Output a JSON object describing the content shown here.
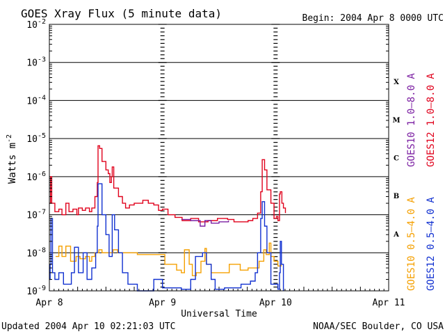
{
  "chart_data": {
    "type": "line",
    "title": "GOES Xray Flux (5 minute data)",
    "begin_text": "Begin:  2004 Apr 8 0000 UTC",
    "ylabel_base": "Watts m",
    "ylabel_exp": "-2",
    "xlabel": "Universal Time",
    "footer_left": "Updated 2004 Apr 10 02:21:03 UTC",
    "footer_right": "NOAA/SEC Boulder, CO USA",
    "yscale": "log",
    "ylim": [
      1e-09,
      0.01
    ],
    "xlim": [
      "2004-04-08 00:00",
      "2004-04-11 00:00"
    ],
    "grid": "horizontal at each decade",
    "x_ticks": [
      {
        "x": "2004-04-08 00:00",
        "label": "Apr 8"
      },
      {
        "x": "2004-04-09 00:00",
        "label": "Apr 9"
      },
      {
        "x": "2004-04-10 00:00",
        "label": "Apr 10"
      },
      {
        "x": "2004-04-11 00:00",
        "label": "Apr 11"
      }
    ],
    "y_ticks": [
      {
        "exp": -2,
        "label_base": "10",
        "label_exp": "-2"
      },
      {
        "exp": -3,
        "label_base": "10",
        "label_exp": "-3"
      },
      {
        "exp": -4,
        "label_base": "10",
        "label_exp": "-4"
      },
      {
        "exp": -5,
        "label_base": "10",
        "label_exp": "-5"
      },
      {
        "exp": -6,
        "label_base": "10",
        "label_exp": "-6"
      },
      {
        "exp": -7,
        "label_base": "10",
        "label_exp": "-7"
      },
      {
        "exp": -8,
        "label_base": "10",
        "label_exp": "-8"
      },
      {
        "exp": -9,
        "label_base": "10",
        "label_exp": "-9"
      }
    ],
    "flare_classes": [
      {
        "label": "X",
        "exp": -4
      },
      {
        "label": "M",
        "exp": -5
      },
      {
        "label": "C",
        "exp": -6
      },
      {
        "label": "B",
        "exp": -7
      },
      {
        "label": "A",
        "exp": -8
      }
    ],
    "legend_right": [
      {
        "name": "GOES10 1.0–8.0 A",
        "color": "#7b1fa2",
        "group": "long"
      },
      {
        "name": "GOES12 1.0–8.0 A",
        "color": "#e0001b",
        "group": "long"
      },
      {
        "name": "GOES10 0.5–4.0 A",
        "color": "#f5a000",
        "group": "short"
      },
      {
        "name": "GOES12 0.5–4.0 A",
        "color": "#1030d0",
        "group": "short"
      }
    ],
    "series": [
      {
        "name": "GOES12 1.0–8.0 A",
        "color": "#e0001b",
        "points": [
          [
            "2004-04-08 00:00",
            2e-07
          ],
          [
            "2004-04-08 00:15",
            1e-06
          ],
          [
            "2004-04-08 00:30",
            2e-07
          ],
          [
            "2004-04-08 01:10",
            1.2e-07
          ],
          [
            "2004-04-08 02:00",
            1.4e-07
          ],
          [
            "2004-04-08 02:40",
            1e-07
          ],
          [
            "2004-04-08 03:30",
            2e-07
          ],
          [
            "2004-04-08 04:10",
            1.2e-07
          ],
          [
            "2004-04-08 05:00",
            1.4e-07
          ],
          [
            "2004-04-08 05:50",
            1e-07
          ],
          [
            "2004-04-08 06:10",
            1.5e-07
          ],
          [
            "2004-04-08 07:00",
            1.3e-07
          ],
          [
            "2004-04-08 07:40",
            1.5e-07
          ],
          [
            "2004-04-08 08:30",
            1.2e-07
          ],
          [
            "2004-04-08 09:00",
            1.5e-07
          ],
          [
            "2004-04-08 09:40",
            3e-07
          ],
          [
            "2004-04-08 10:10",
            7e-07
          ],
          [
            "2004-04-08 10:20",
            6.5e-06
          ],
          [
            "2004-04-08 10:40",
            5.5e-06
          ],
          [
            "2004-04-08 11:10",
            2.5e-06
          ],
          [
            "2004-04-08 12:00",
            1.5e-06
          ],
          [
            "2004-04-08 12:30",
            1.2e-06
          ],
          [
            "2004-04-08 12:50",
            7e-07
          ],
          [
            "2004-04-08 13:10",
            1e-06
          ],
          [
            "2004-04-08 13:20",
            1.8e-06
          ],
          [
            "2004-04-08 13:40",
            5e-07
          ],
          [
            "2004-04-08 14:40",
            3e-07
          ],
          [
            "2004-04-08 15:30",
            2e-07
          ],
          [
            "2004-04-08 16:10",
            1.5e-07
          ],
          [
            "2004-04-08 17:00",
            1.8e-07
          ],
          [
            "2004-04-08 18:00",
            2e-07
          ],
          [
            "2004-04-08 19:50",
            2.4e-07
          ],
          [
            "2004-04-08 21:00",
            2e-07
          ],
          [
            "2004-04-08 22:10",
            1.8e-07
          ],
          [
            "2004-04-08 23:10",
            1.3e-07
          ],
          [
            "2004-04-09 00:00",
            1.4e-07
          ],
          [
            "2004-04-09 01:10",
            1e-07
          ],
          [
            "2004-04-09 02:40",
            8.5e-08
          ],
          [
            "2004-04-09 04:10",
            7e-08
          ],
          [
            "2004-04-09 06:00",
            8e-08
          ],
          [
            "2004-04-09 07:40",
            6.5e-08
          ],
          [
            "2004-04-09 09:40",
            7e-08
          ],
          [
            "2004-04-09 11:40",
            8e-08
          ],
          [
            "2004-04-09 13:50",
            7.5e-08
          ],
          [
            "2004-04-09 15:10",
            6.5e-08
          ],
          [
            "2004-04-09 16:40",
            6.5e-08
          ],
          [
            "2004-04-09 18:10",
            7e-08
          ],
          [
            "2004-04-09 19:10",
            8e-08
          ],
          [
            "2004-04-09 20:10",
            1.1e-07
          ],
          [
            "2004-04-09 20:50",
            4e-07
          ],
          [
            "2004-04-09 21:10",
            2.8e-06
          ],
          [
            "2004-04-09 21:40",
            1.5e-06
          ],
          [
            "2004-04-09 22:10",
            4.5e-07
          ],
          [
            "2004-04-09 23:00",
            2e-07
          ],
          [
            "2004-04-09 23:40",
            8e-08
          ],
          [
            "2004-04-10 00:10",
            9e-08
          ],
          [
            "2004-04-10 00:30",
            7e-08
          ],
          [
            "2004-04-10 00:50",
            3.5e-07
          ],
          [
            "2004-04-10 01:00",
            4e-07
          ],
          [
            "2004-04-10 01:20",
            2e-07
          ],
          [
            "2004-04-10 01:40",
            1.5e-07
          ],
          [
            "2004-04-10 02:05",
            1.1e-07
          ]
        ]
      },
      {
        "name": "GOES10 1.0–8.0 A",
        "color": "#7b1fa2",
        "points": [
          [
            "2004-04-09 04:00",
            7.5e-08
          ],
          [
            "2004-04-09 06:00",
            7e-08
          ],
          [
            "2004-04-09 08:00",
            5e-08
          ],
          [
            "2004-04-09 09:00",
            7e-08
          ],
          [
            "2004-04-09 10:20",
            6e-08
          ],
          [
            "2004-04-09 12:00",
            6.5e-08
          ],
          [
            "2004-04-09 14:00",
            7e-08
          ]
        ]
      },
      {
        "name": "GOES10 0.5–4.0 A",
        "color": "#f5a000",
        "points": [
          [
            "2004-04-08 01:20",
            8e-09
          ],
          [
            "2004-04-08 02:00",
            1.5e-08
          ],
          [
            "2004-04-08 02:40",
            8e-09
          ],
          [
            "2004-04-08 03:30",
            1.5e-08
          ],
          [
            "2004-04-08 04:30",
            6e-09
          ],
          [
            "2004-04-08 05:40",
            8e-09
          ],
          [
            "2004-04-08 06:30",
            7e-09
          ],
          [
            "2004-04-08 07:40",
            8e-09
          ],
          [
            "2004-04-08 08:30",
            6e-09
          ],
          [
            "2004-04-08 09:00",
            8e-09
          ],
          [
            "2004-04-08 09:40",
            1e-08
          ],
          [
            "2004-04-08 10:30",
            1.2e-08
          ],
          [
            "2004-04-08 11:10",
            1e-08
          ],
          [
            "2004-04-08 12:10",
            1e-08
          ],
          [
            "2004-04-08 13:30",
            1.2e-08
          ],
          [
            "2004-04-08 14:30",
            1e-08
          ],
          [
            "2004-04-08 16:40",
            1e-08
          ],
          [
            "2004-04-08 18:40",
            9e-09
          ],
          [
            "2004-04-08 21:00",
            9e-09
          ],
          [
            "2004-04-08 23:30",
            9e-09
          ],
          [
            "2004-04-09 00:30",
            5e-09
          ],
          [
            "2004-04-09 02:10",
            5e-09
          ],
          [
            "2004-04-09 03:00",
            3.5e-09
          ],
          [
            "2004-04-09 04:00",
            3e-09
          ],
          [
            "2004-04-09 04:40",
            1.2e-08
          ],
          [
            "2004-04-09 05:40",
            5e-09
          ],
          [
            "2004-04-09 06:20",
            2.5e-09
          ],
          [
            "2004-04-09 07:10",
            3e-09
          ],
          [
            "2004-04-09 08:10",
            6e-09
          ],
          [
            "2004-04-09 09:00",
            1.3e-08
          ],
          [
            "2004-04-09 09:20",
            5e-09
          ],
          [
            "2004-04-09 10:20",
            3e-09
          ],
          [
            "2004-04-09 12:00",
            3e-09
          ],
          [
            "2004-04-09 13:10",
            3e-09
          ],
          [
            "2004-04-09 14:10",
            5e-09
          ],
          [
            "2004-04-09 15:40",
            5e-09
          ],
          [
            "2004-04-09 16:30",
            3.5e-09
          ],
          [
            "2004-04-09 18:10",
            4e-09
          ],
          [
            "2004-04-09 19:30",
            4e-09
          ],
          [
            "2004-04-09 20:30",
            6e-09
          ],
          [
            "2004-04-09 21:30",
            1.2e-08
          ],
          [
            "2004-04-09 22:00",
            9e-09
          ],
          [
            "2004-04-09 22:40",
            1.8e-08
          ],
          [
            "2004-04-09 23:00",
            8e-09
          ],
          [
            "2004-04-09 23:40",
            6e-09
          ],
          [
            "2004-04-10 00:30",
            4.5e-09
          ],
          [
            "2004-04-10 01:10",
            5e-09
          ]
        ]
      },
      {
        "name": "GOES12 0.5–4.0 A",
        "color": "#1030d0",
        "points": [
          [
            "2004-04-08 00:00",
            2e-09
          ],
          [
            "2004-04-08 00:10",
            5e-09
          ],
          [
            "2004-04-08 00:20",
            8e-08
          ],
          [
            "2004-04-08 00:40",
            3e-09
          ],
          [
            "2004-04-08 01:10",
            2e-09
          ],
          [
            "2004-04-08 02:00",
            3e-09
          ],
          [
            "2004-04-08 03:00",
            1.5e-09
          ],
          [
            "2004-04-08 04:40",
            3e-09
          ],
          [
            "2004-04-08 05:20",
            1.4e-08
          ],
          [
            "2004-04-08 06:10",
            3e-09
          ],
          [
            "2004-04-08 07:10",
            1e-08
          ],
          [
            "2004-04-08 08:00",
            2e-09
          ],
          [
            "2004-04-08 09:00",
            4e-09
          ],
          [
            "2004-04-08 09:50",
            1e-08
          ],
          [
            "2004-04-08 10:10",
            5e-08
          ],
          [
            "2004-04-08 10:20",
            6.5e-07
          ],
          [
            "2004-04-08 11:10",
            1e-07
          ],
          [
            "2004-04-08 12:00",
            3e-08
          ],
          [
            "2004-04-08 12:40",
            8e-09
          ],
          [
            "2004-04-08 13:20",
            1e-07
          ],
          [
            "2004-04-08 13:50",
            4e-08
          ],
          [
            "2004-04-08 14:40",
            1e-08
          ],
          [
            "2004-04-08 15:30",
            3e-09
          ],
          [
            "2004-04-08 16:40",
            1.5e-09
          ],
          [
            "2004-04-08 18:40",
            1e-09
          ],
          [
            "2004-04-08 20:40",
            1e-09
          ],
          [
            "2004-04-08 22:10",
            2e-09
          ],
          [
            "2004-04-08 22:50",
            2e-09
          ],
          [
            "2004-04-09 00:00",
            1.2e-09
          ],
          [
            "2004-04-09 04:00",
            1.1e-09
          ],
          [
            "2004-04-09 06:00",
            2e-09
          ],
          [
            "2004-04-09 07:00",
            8e-09
          ],
          [
            "2004-04-09 08:30",
            1e-08
          ],
          [
            "2004-04-09 09:20",
            5e-09
          ],
          [
            "2004-04-09 10:20",
            2e-09
          ],
          [
            "2004-04-09 11:10",
            1.1e-09
          ],
          [
            "2004-04-09 13:10",
            1.2e-09
          ],
          [
            "2004-04-09 16:40",
            1.5e-09
          ],
          [
            "2004-04-09 18:40",
            1.8e-09
          ],
          [
            "2004-04-09 19:40",
            3e-09
          ],
          [
            "2004-04-09 20:10",
            1e-08
          ],
          [
            "2004-04-09 20:50",
            8e-08
          ],
          [
            "2004-04-09 21:10",
            2.2e-07
          ],
          [
            "2004-04-09 21:40",
            5e-08
          ],
          [
            "2004-04-09 22:10",
            1e-08
          ],
          [
            "2004-04-09 23:00",
            1.5e-09
          ],
          [
            "2004-04-10 00:30",
            1.1e-09
          ],
          [
            "2004-04-10 00:50",
            3e-09
          ],
          [
            "2004-04-10 01:00",
            2e-08
          ],
          [
            "2004-04-10 01:15",
            5e-09
          ],
          [
            "2004-04-10 01:40",
            1e-09
          ]
        ]
      }
    ]
  }
}
